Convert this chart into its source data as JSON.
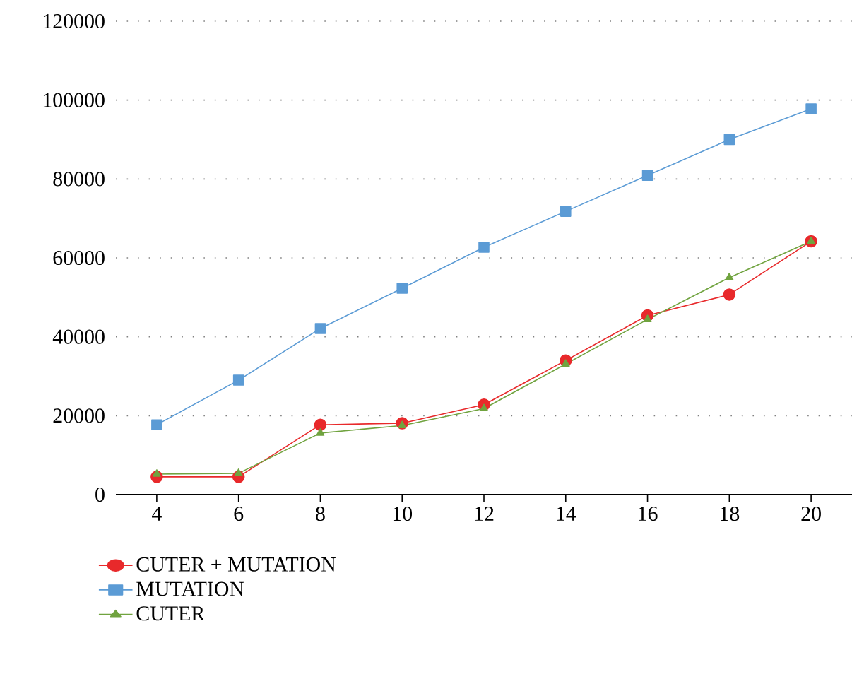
{
  "chart_data": {
    "type": "line",
    "x": [
      4,
      6,
      8,
      10,
      12,
      14,
      16,
      18,
      20
    ],
    "series": [
      {
        "name": "CUTER + MUTATION",
        "color": "#e8292b",
        "marker": "circle",
        "values": [
          4500,
          4500,
          17700,
          18100,
          22800,
          34000,
          45400,
          50700,
          64200
        ]
      },
      {
        "name": "MUTATION",
        "color": "#5b9bd5",
        "marker": "square",
        "values": [
          17700,
          29000,
          42100,
          52300,
          62700,
          71800,
          80900,
          90000,
          97800
        ]
      },
      {
        "name": "CUTER",
        "color": "#70a33f",
        "marker": "triangle",
        "values": [
          5200,
          5400,
          15600,
          17500,
          21800,
          33100,
          44400,
          55000,
          64200
        ]
      }
    ],
    "xlim": [
      3,
      21
    ],
    "xticks": [
      4,
      6,
      8,
      10,
      12,
      14,
      16,
      18,
      20
    ],
    "ylim": [
      0,
      120000
    ],
    "yticks": [
      0,
      20000,
      40000,
      60000,
      80000,
      100000,
      120000
    ],
    "grid": "y",
    "legend": "bottom left",
    "line_style": "solid"
  }
}
